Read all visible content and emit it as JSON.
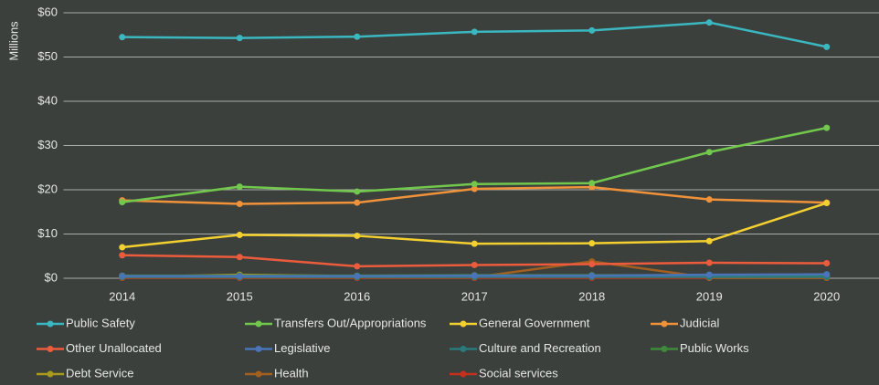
{
  "chart_data": {
    "type": "line",
    "y_label": "Millions",
    "categories": [
      "2014",
      "2015",
      "2016",
      "2017",
      "2018",
      "2019",
      "2020"
    ],
    "ylim": [
      0,
      60
    ],
    "yticks": [
      {
        "value": 0,
        "label": "$0"
      },
      {
        "value": 10,
        "label": "$10"
      },
      {
        "value": 20,
        "label": "$20"
      },
      {
        "value": 30,
        "label": "$30"
      },
      {
        "value": 40,
        "label": "$40"
      },
      {
        "value": 50,
        "label": "$50"
      },
      {
        "value": 60,
        "label": "$60"
      }
    ],
    "grid": true,
    "legend": "bottom",
    "series": [
      {
        "name": "Public Safety",
        "color": "#3bb7c0",
        "values": [
          54.5,
          54.3,
          54.6,
          55.7,
          56.0,
          57.8,
          52.3
        ]
      },
      {
        "name": "Transfers Out/Appropriations",
        "color": "#72c84c",
        "values": [
          17.2,
          20.7,
          19.6,
          21.3,
          21.5,
          28.5,
          34.0
        ]
      },
      {
        "name": "General Government",
        "color": "#f3d02f",
        "values": [
          7.0,
          9.8,
          9.6,
          7.8,
          7.9,
          8.4,
          17.0
        ]
      },
      {
        "name": "Judicial",
        "color": "#f0923a",
        "values": [
          17.6,
          16.8,
          17.1,
          20.2,
          20.6,
          17.8,
          17.1
        ]
      },
      {
        "name": "Other Unallocated",
        "color": "#ec5b3c",
        "values": [
          5.2,
          4.8,
          2.7,
          3.0,
          3.2,
          3.5,
          3.4
        ]
      },
      {
        "name": "Legislative",
        "color": "#4b74b8",
        "values": [
          0.5,
          0.5,
          0.5,
          0.6,
          0.6,
          0.8,
          0.9
        ]
      },
      {
        "name": "Culture and Recreation",
        "color": "#2a7a7c",
        "values": [
          0.3,
          0.3,
          0.3,
          0.3,
          0.3,
          0.3,
          0.3
        ]
      },
      {
        "name": "Public Works",
        "color": "#3f8a3a",
        "values": [
          0.6,
          0.6,
          0.6,
          0.7,
          0.7,
          0.7,
          0.7
        ]
      },
      {
        "name": "Debt Service",
        "color": "#a89a1c",
        "values": [
          0.3,
          0.8,
          0.5,
          0.5,
          0.5,
          0.4,
          0.4
        ]
      },
      {
        "name": "Health",
        "color": "#a35f20",
        "values": [
          0.2,
          0.2,
          0.2,
          0.2,
          3.8,
          0.1,
          0.1
        ]
      },
      {
        "name": "Social services",
        "color": "#c0311e",
        "values": [
          0.1,
          0.1,
          0.1,
          0.1,
          0.1,
          0.1,
          0.1
        ]
      }
    ]
  }
}
